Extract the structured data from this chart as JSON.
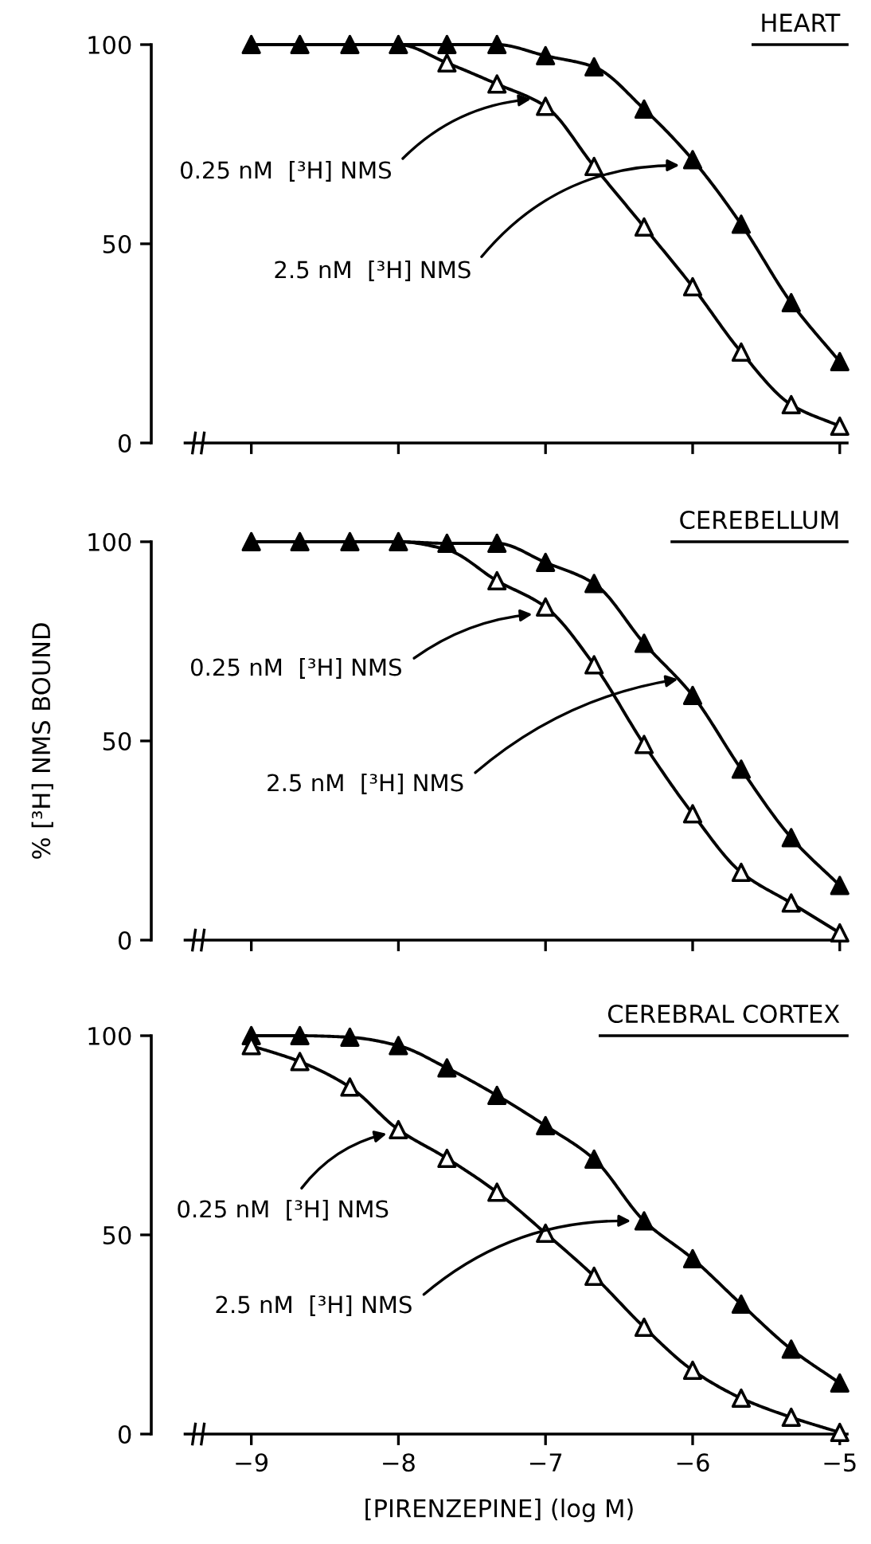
{
  "chart_data": [
    {
      "type": "scatter",
      "title": "HEART",
      "xlim": [
        -9.68,
        -4.95
      ],
      "ylim": [
        0,
        100
      ],
      "yticks": [
        0,
        50,
        100
      ],
      "xticks": [
        -9,
        -8,
        -7,
        -6,
        -5
      ],
      "tick_labels": "y",
      "grid": false,
      "marker": "triangle",
      "x": [
        -9,
        -8.67,
        -8.33,
        -8,
        -7.67,
        -7.33,
        -7,
        -6.67,
        -6.33,
        -6,
        -5.67,
        -5.33,
        -5
      ],
      "series": [
        {
          "type": "line",
          "color": "#000000",
          "marker": "none",
          "values": [
            100,
            100,
            100,
            100,
            100,
            100,
            97.2,
            94.4,
            83.8,
            71.1,
            54.9,
            35.2,
            20.4
          ]
        },
        {
          "type": "line",
          "color": "#000000",
          "marker": "none",
          "values": [
            100,
            100,
            100,
            100,
            95.4,
            90.1,
            84.5,
            69.4,
            54.2,
            39.2,
            22.8,
            9.6,
            4.2
          ]
        },
        {
          "type": "scatter",
          "color": "#000000",
          "values": [
            100,
            100,
            100,
            100,
            100,
            100,
            97.2,
            94.4,
            83.8,
            71.1,
            54.9,
            35.2,
            20.4
          ]
        },
        {
          "type": "scatter",
          "color": "#ffffff",
          "values": [
            null,
            null,
            null,
            null,
            95.4,
            90.1,
            84.5,
            69.4,
            54.2,
            39.2,
            22.8,
            9.6,
            4.2
          ]
        }
      ],
      "annotations": [
        {
          "text": "0.25 nM  [³H] NMS",
          "x": -7.1,
          "y": 86.3
        },
        {
          "text": "2.5 nM  [³H] NMS",
          "x": -6.09,
          "y": 69.7
        }
      ]
    },
    {
      "type": "scatter",
      "title": "CEREBELLUM",
      "ylabel": "% [³H] NMS BOUND",
      "xlim": [
        -9.68,
        -4.95
      ],
      "ylim": [
        0,
        100
      ],
      "yticks": [
        0,
        50,
        100
      ],
      "xticks": [
        -9,
        -8,
        -7,
        -6,
        -5
      ],
      "tick_labels": "y",
      "grid": false,
      "marker": "triangle",
      "x": [
        -9,
        -8.67,
        -8.33,
        -8,
        -7.67,
        -7.33,
        -7,
        -6.67,
        -6.33,
        -6,
        -5.67,
        -5.33,
        -5
      ],
      "series": [
        {
          "type": "line",
          "color": "#000000",
          "marker": "none",
          "values": [
            100,
            100,
            100,
            100,
            99.6,
            99.6,
            94.8,
            89.5,
            74.5,
            61.4,
            42.9,
            25.7,
            13.7
          ]
        },
        {
          "type": "line",
          "color": "#000000",
          "marker": "none",
          "values": [
            100,
            100,
            100,
            100,
            98,
            90.2,
            83.6,
            69.1,
            49.1,
            31.7,
            17.0,
            9.3,
            1.8
          ]
        },
        {
          "type": "scatter",
          "color": "#000000",
          "values": [
            100,
            100,
            100,
            100,
            99.6,
            99.6,
            94.8,
            89.5,
            74.5,
            61.4,
            42.9,
            25.7,
            13.7
          ]
        },
        {
          "type": "scatter",
          "color": "#ffffff",
          "values": [
            null,
            null,
            null,
            null,
            null,
            90.2,
            83.6,
            69.1,
            49.1,
            31.7,
            17.0,
            9.3,
            1.8
          ]
        }
      ],
      "annotations": [
        {
          "text": "0.25 nM  [³H] NMS",
          "x": -7.09,
          "y": 81.8
        },
        {
          "text": "2.5 nM  [³H] NMS",
          "x": -6.1,
          "y": 65.5
        }
      ]
    },
    {
      "type": "scatter",
      "title": "CEREBRAL CORTEX",
      "xlabel": "[PIRENZEPINE] (log M)",
      "xlim": [
        -9.68,
        -4.95
      ],
      "ylim": [
        0,
        100
      ],
      "yticks": [
        0,
        50,
        100
      ],
      "xticks": [
        -9,
        -8,
        -7,
        -6,
        -5
      ],
      "grid": false,
      "marker": "triangle",
      "x": [
        -9,
        -8.67,
        -8.33,
        -8,
        -7.67,
        -7.33,
        -7,
        -6.67,
        -6.33,
        -6,
        -5.67,
        -5.33,
        -5
      ],
      "series": [
        {
          "type": "line",
          "color": "#000000",
          "marker": "none",
          "values": [
            100,
            100,
            99.6,
            97.5,
            91.9,
            85,
            77.4,
            69,
            53.5,
            44,
            32.6,
            21.3,
            12.8
          ]
        },
        {
          "type": "line",
          "color": "#000000",
          "marker": "none",
          "values": [
            97.5,
            93.5,
            87.1,
            76.4,
            69.2,
            60.7,
            50.4,
            39.6,
            26.8,
            16,
            9,
            4.2,
            0.4
          ]
        },
        {
          "type": "scatter",
          "color": "#000000",
          "values": [
            100,
            100,
            99.6,
            97.5,
            91.9,
            85,
            77.4,
            69,
            53.5,
            44,
            32.6,
            21.3,
            12.8
          ]
        },
        {
          "type": "scatter",
          "color": "#ffffff",
          "values": [
            97.5,
            93.5,
            87.1,
            76.4,
            69.2,
            60.7,
            50.4,
            39.6,
            26.8,
            16,
            9,
            4.2,
            0.4
          ]
        }
      ],
      "annotations": [
        {
          "text": "0.25 nM  [³H] NMS",
          "x": -8.08,
          "y": 75.4
        },
        {
          "text": "2.5 nM  [³H] NMS",
          "x": -6.42,
          "y": 53.5
        }
      ]
    }
  ]
}
